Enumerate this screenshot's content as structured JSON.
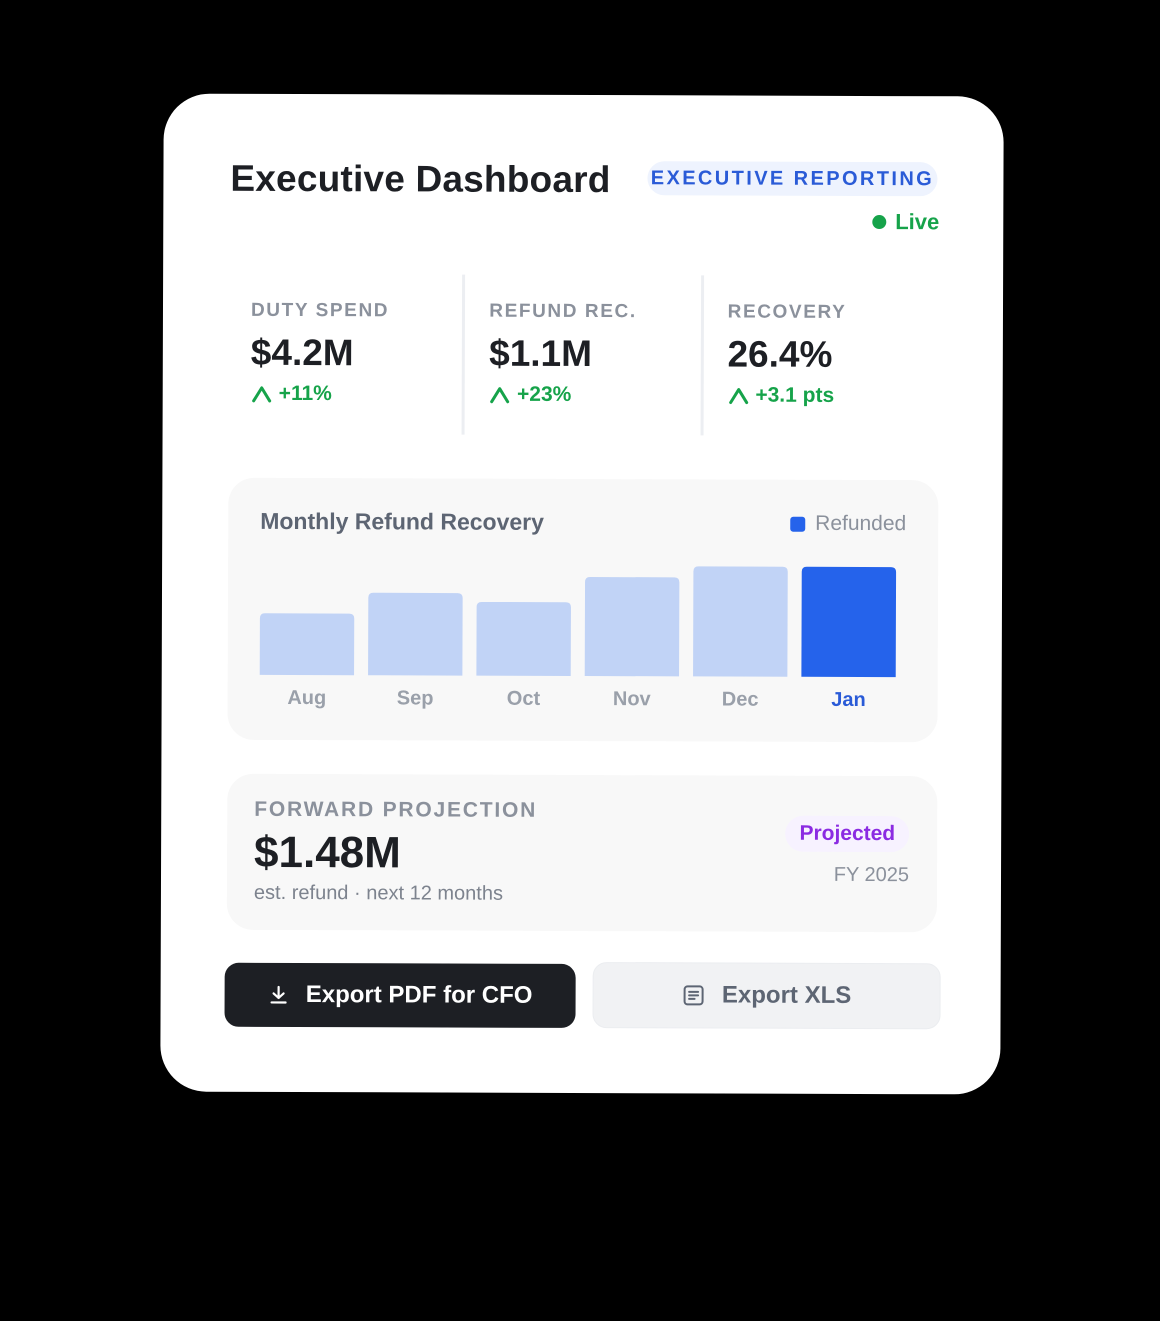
{
  "header": {
    "title": "Executive Dashboard",
    "tag": "EXECUTIVE REPORTING",
    "status": "Live"
  },
  "kpis": [
    {
      "label": "DUTY SPEND",
      "value": "$4.2M",
      "delta": "+11%"
    },
    {
      "label": "REFUND REC.",
      "value": "$1.1M",
      "delta": "+23%"
    },
    {
      "label": "RECOVERY",
      "value": "26.4%",
      "delta": "+3.1 pts"
    }
  ],
  "chart_data": {
    "type": "bar",
    "title": "Monthly Refund Recovery",
    "legend": [
      "Refunded"
    ],
    "legend_position": "top-right",
    "categories": [
      "Aug",
      "Sep",
      "Oct",
      "Nov",
      "Dec",
      "Jan"
    ],
    "values": [
      56,
      75,
      67,
      90,
      100,
      100
    ],
    "ylim": [
      0,
      100
    ],
    "highlight_index": 5,
    "colors": {
      "bar": "#c1d3f6",
      "highlight": "#2563eb"
    }
  },
  "projection": {
    "label": "FORWARD PROJECTION",
    "value": "$1.48M",
    "note": "est. refund · next 12 months",
    "badge": "Projected",
    "period": "FY 2025"
  },
  "actions": {
    "primary": "Export PDF for CFO",
    "secondary": "Export XLS"
  },
  "icons": {
    "status": "live-dot-icon",
    "delta": "arrow-up-icon",
    "primary": "download-icon",
    "secondary": "document-icon"
  },
  "colors": {
    "accent": "#2563eb",
    "positive": "#16a34a",
    "projected": "#8b2be2",
    "dark": "#1d1f24"
  }
}
